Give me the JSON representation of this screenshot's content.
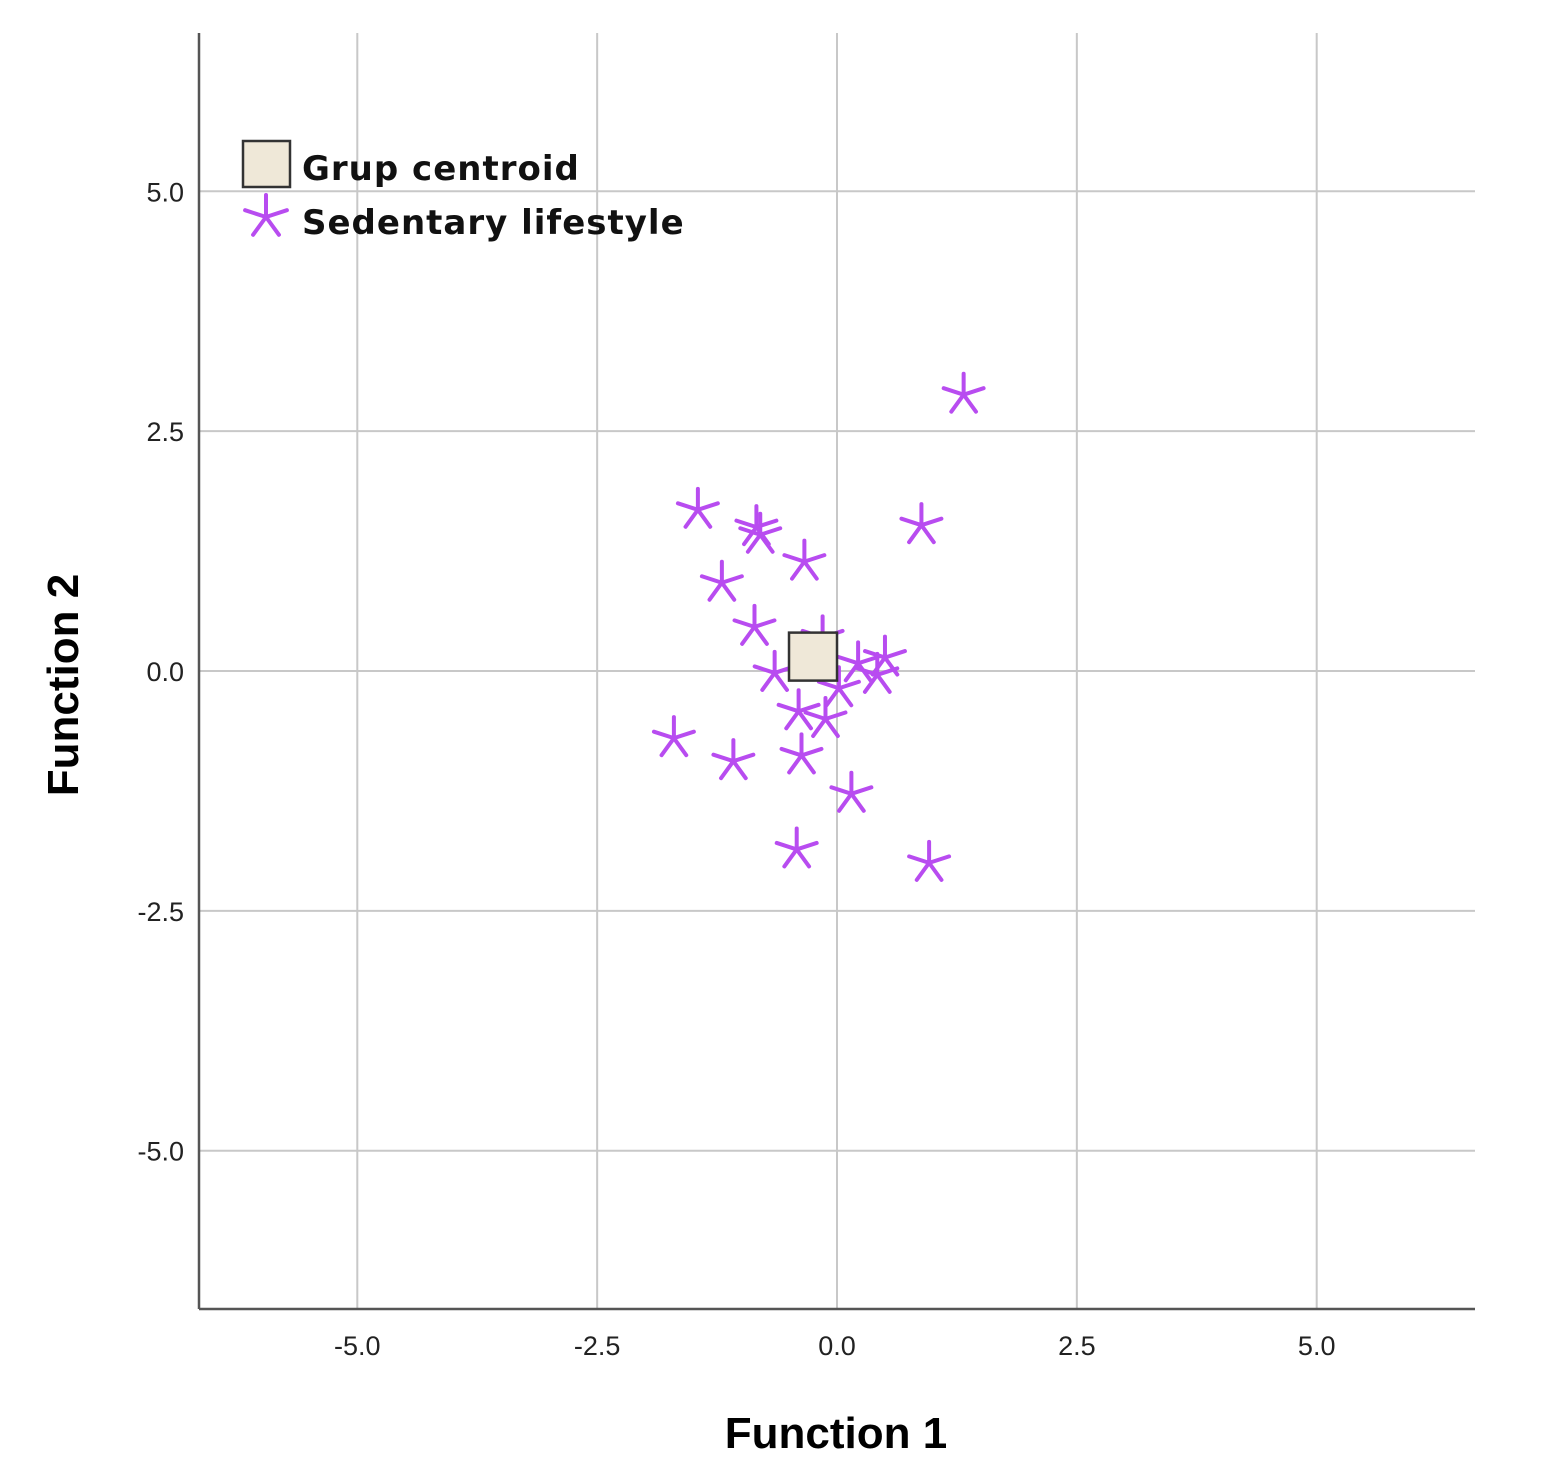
{
  "chart_data": {
    "type": "scatter",
    "xlabel": "Function 1",
    "ylabel": "Function 2",
    "xlim": [
      -6.65,
      6.65
    ],
    "ylim": [
      -6.65,
      6.65
    ],
    "xticks": [
      -5.0,
      -2.5,
      0.0,
      2.5,
      5.0
    ],
    "yticks": [
      -5.0,
      -2.5,
      0.0,
      2.5,
      5.0
    ],
    "xtick_labels": [
      "-5.0",
      "-2.5",
      "0.0",
      "2.5",
      "5.0"
    ],
    "ytick_labels": [
      "-5.0",
      "-2.5",
      "0.0",
      "2.5",
      "5.0"
    ],
    "grid": true,
    "legend_position": "top-left",
    "series": [
      {
        "name": "Grup centroid",
        "marker": "square",
        "color": "#efe8d8",
        "edge_color": "#333333",
        "points": [
          [
            -0.25,
            0.15
          ]
        ]
      },
      {
        "name": "Sedentary lifestyle",
        "marker": "asterisk",
        "color": "#b84cf0",
        "points": [
          [
            1.32,
            2.88
          ],
          [
            -1.45,
            1.68
          ],
          [
            -0.84,
            1.5
          ],
          [
            -0.8,
            1.42
          ],
          [
            0.88,
            1.52
          ],
          [
            -0.34,
            1.14
          ],
          [
            -1.2,
            0.92
          ],
          [
            -0.86,
            0.46
          ],
          [
            -0.15,
            0.35
          ],
          [
            -0.65,
            -0.02
          ],
          [
            0.22,
            0.08
          ],
          [
            0.5,
            0.14
          ],
          [
            0.42,
            -0.04
          ],
          [
            0.02,
            -0.18
          ],
          [
            -0.4,
            -0.42
          ],
          [
            -0.12,
            -0.5
          ],
          [
            -1.7,
            -0.7
          ],
          [
            -1.08,
            -0.94
          ],
          [
            -0.37,
            -0.88
          ],
          [
            0.15,
            -1.28
          ],
          [
            -0.42,
            -1.86
          ],
          [
            0.96,
            -2.0
          ]
        ]
      }
    ]
  }
}
